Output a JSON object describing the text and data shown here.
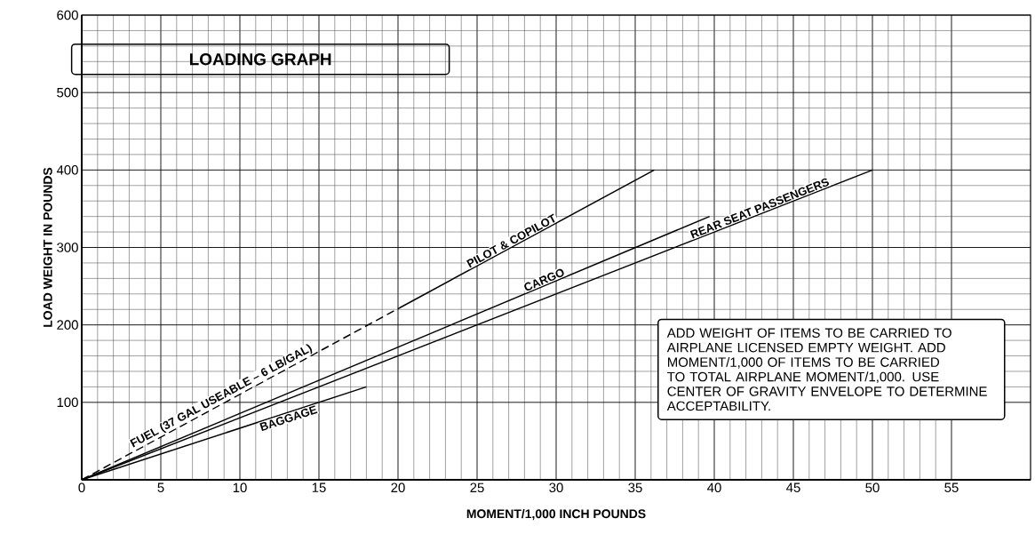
{
  "chart_data": {
    "type": "line",
    "title": "LOADING GRAPH",
    "xlabel": "MOMENT/1,000 INCH POUNDS",
    "ylabel": "LOAD WEIGHT IN POUNDS",
    "xlim": [
      0,
      60
    ],
    "ylim": [
      0,
      600
    ],
    "xticks": [
      0,
      5,
      10,
      15,
      20,
      25,
      30,
      35,
      40,
      45,
      50,
      55
    ],
    "yticks": [
      100,
      200,
      300,
      400,
      500,
      600
    ],
    "grid": true,
    "series": [
      {
        "name": "PILOT & COPILOT",
        "color": "#000000",
        "line_style": "solid",
        "x": [
          20.1,
          36.2
        ],
        "values": [
          222,
          400
        ]
      },
      {
        "name": "CARGO",
        "color": "#000000",
        "line_style": "solid",
        "x": [
          0,
          39.7
        ],
        "values": [
          0,
          340
        ]
      },
      {
        "name": "REAR SEAT PASSENGERS",
        "color": "#000000",
        "line_style": "solid",
        "x": [
          0,
          50
        ],
        "values": [
          0,
          400
        ]
      },
      {
        "name": "BAGGAGE",
        "color": "#000000",
        "line_style": "solid",
        "x": [
          0,
          18
        ],
        "values": [
          0,
          120
        ]
      },
      {
        "name": "FUEL (37 GAL USEABLE – 6 LB/GAL)",
        "color": "#000000",
        "line_style": "dashed",
        "x": [
          0,
          20.1
        ],
        "values": [
          0,
          222
        ]
      }
    ],
    "annotations": [
      "ADD WEIGHT OF ITEMS TO BE CARRIED TO AIRPLANE LICENSED EMPTY WEIGHT. ADD MOMENT/1,000 OF ITEMS TO BE CARRIED TO TOTAL AIRPLANE MOMENT/1,000. USE CENTER OF GRAVITY ENVELOPE TO DETERMINE ACCEPTABILITY."
    ]
  }
}
